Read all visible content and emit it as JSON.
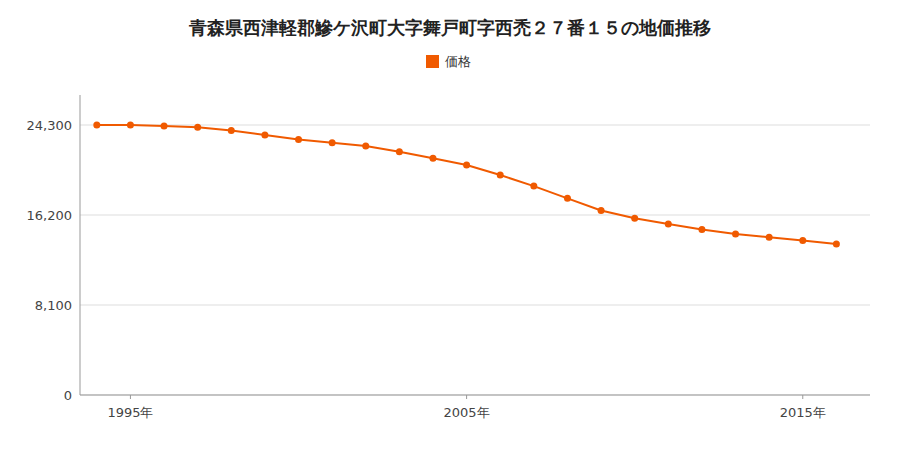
{
  "chart_data": {
    "type": "line",
    "title": "青森県西津軽郡鰺ケ沢町大字舞戸町字西禿２７番１５の地価推移",
    "x": [
      1994,
      1995,
      1996,
      1997,
      1998,
      1999,
      2000,
      2001,
      2002,
      2003,
      2004,
      2005,
      2006,
      2007,
      2008,
      2009,
      2010,
      2011,
      2012,
      2013,
      2014,
      2015,
      2016
    ],
    "series": [
      {
        "name": "価格",
        "color": "#f05a00",
        "marker": "circle",
        "values": [
          24300,
          24300,
          24200,
          24100,
          23800,
          23400,
          23000,
          22700,
          22400,
          21900,
          21300,
          20700,
          19800,
          18800,
          17700,
          16600,
          15900,
          15400,
          14900,
          14500,
          14200,
          13900,
          13600
        ]
      }
    ],
    "xlim": [
      1993.5,
      2017
    ],
    "xticks": [
      {
        "value": 1995,
        "label": "1995年"
      },
      {
        "value": 2005,
        "label": "2005年"
      },
      {
        "value": 2015,
        "label": "2015年"
      }
    ],
    "ylim": [
      0,
      27000
    ],
    "yticks": [
      0,
      {
        "value": 8100,
        "label": "8,100"
      },
      {
        "value": 16200,
        "label": "16,200"
      },
      {
        "value": 24300,
        "label": "24,300"
      }
    ],
    "grid": "y",
    "legend": "top"
  }
}
